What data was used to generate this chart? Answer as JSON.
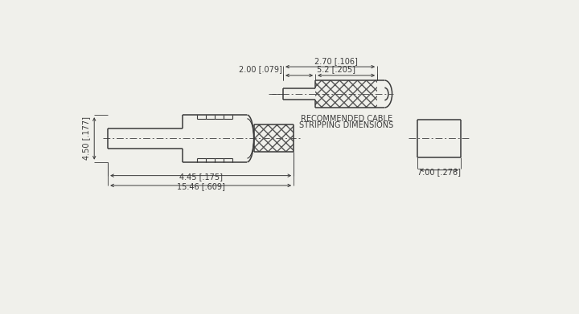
{
  "bg_color": "#f0f0eb",
  "line_color": "#3a3a3a",
  "dim_color": "#3a3a3a",
  "centerline_color": "#555555",
  "hatch_color": "#555555",
  "annotations": {
    "cable_label_line1": "RECOMMENDED CABLE",
    "cable_label_line2": "STRIPPING DIMENSIONS",
    "dim_270": "2.70 [.106]",
    "dim_52": "5.2 [.205]",
    "dim_200": "2.00 [.079]",
    "dim_450": "4.50 [.177]",
    "dim_445": "4.45 [.175]",
    "dim_1546": "15.46 [.609]",
    "dim_700": "7.00 [.276]"
  }
}
